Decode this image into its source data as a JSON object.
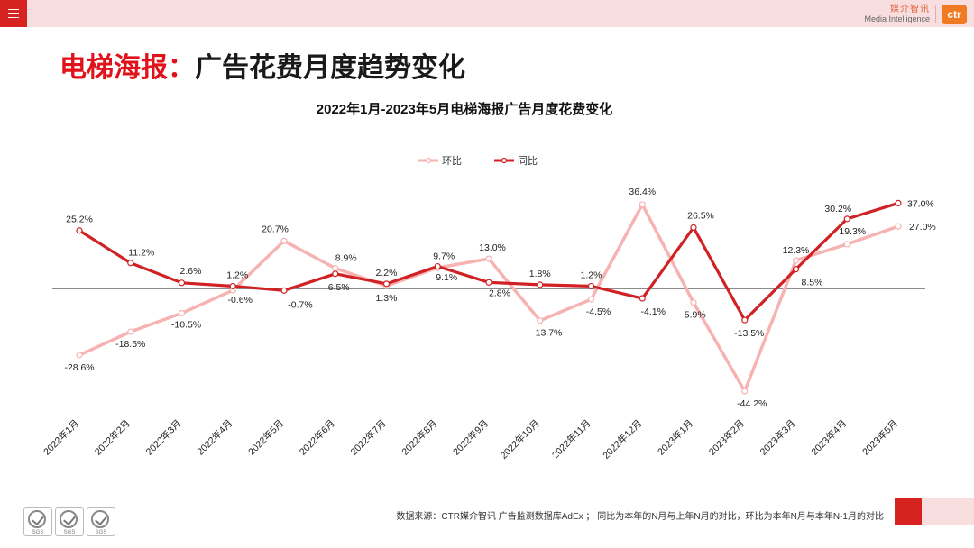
{
  "header": {
    "logo_cn": "媒介智讯",
    "logo_en": "Media Intelligence",
    "logo_mark": "ctr"
  },
  "page_title": {
    "highlight": "电梯海报：",
    "rest": "广告花费月度趋势变化"
  },
  "colors": {
    "accent": "#d62320",
    "mom_series": "#f7b2b2",
    "yoy_series": "#d02225",
    "axis": "#8c8c8c"
  },
  "chart_data": {
    "type": "line",
    "title": "2022年1月-2023年5月电梯海报广告月度花费变化",
    "xlabel": "",
    "ylabel": "",
    "ylim": [
      -50,
      40
    ],
    "grid": false,
    "legend_position": "top-center",
    "categories": [
      "2022年1月",
      "2022年2月",
      "2022年3月",
      "2022年4月",
      "2022年5月",
      "2022年6月",
      "2022年7月",
      "2022年8月",
      "2022年9月",
      "2022年10月",
      "2022年11月",
      "2022年12月",
      "2023年1月",
      "2023年2月",
      "2023年3月",
      "2023年4月",
      "2023年5月"
    ],
    "series": [
      {
        "name": "环比",
        "key": "mom",
        "values": [
          -28.6,
          -18.5,
          -10.5,
          -0.6,
          20.7,
          8.9,
          1.3,
          9.1,
          13.0,
          -13.7,
          -4.5,
          36.4,
          -5.9,
          -44.2,
          12.3,
          19.3,
          27.0
        ],
        "labels": [
          "-28.6%",
          "-18.5%",
          "-10.5%",
          "-0.6%",
          "20.7%",
          "8.9%",
          "1.3%",
          "9.1%",
          "13.0%",
          "-13.7%",
          "-4.5%",
          "36.4%",
          "-5.9%",
          "-44.2%",
          "12.3%",
          "19.3%",
          "27.0%"
        ]
      },
      {
        "name": "同比",
        "key": "yoy",
        "values": [
          25.2,
          11.2,
          2.6,
          1.2,
          -0.7,
          6.5,
          2.2,
          9.7,
          2.8,
          1.8,
          1.2,
          -4.1,
          26.5,
          -13.5,
          8.5,
          30.2,
          37.0
        ],
        "labels": [
          "25.2%",
          "11.2%",
          "2.6%",
          "1.2%",
          "-0.7%",
          "6.5%",
          "2.2%",
          "9.7%",
          "2.8%",
          "1.8%",
          "1.2%",
          "-4.1%",
          "26.5%",
          "-13.5%",
          "8.5%",
          "30.2%",
          "37.0%"
        ]
      }
    ]
  },
  "footer": {
    "source_note": "数据来源：CTR媒介智讯 广告监测数据库AdEx ；  同比为本年的N月与上年N月的对比，环比为本年N月与本年N-1月的对比",
    "sgs_label": "SGS"
  }
}
